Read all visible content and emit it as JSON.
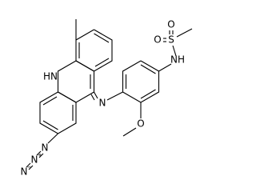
{
  "atoms": [
    {
      "label": "HN"
    },
    {
      "label": "N"
    },
    {
      "label": "O"
    },
    {
      "label": "NH"
    },
    {
      "label": "S"
    },
    {
      "label": "O"
    },
    {
      "label": "O"
    },
    {
      "label": "N"
    },
    {
      "label": "N",
      "charge": "+"
    },
    {
      "label": "N",
      "charge": "−"
    }
  ]
}
